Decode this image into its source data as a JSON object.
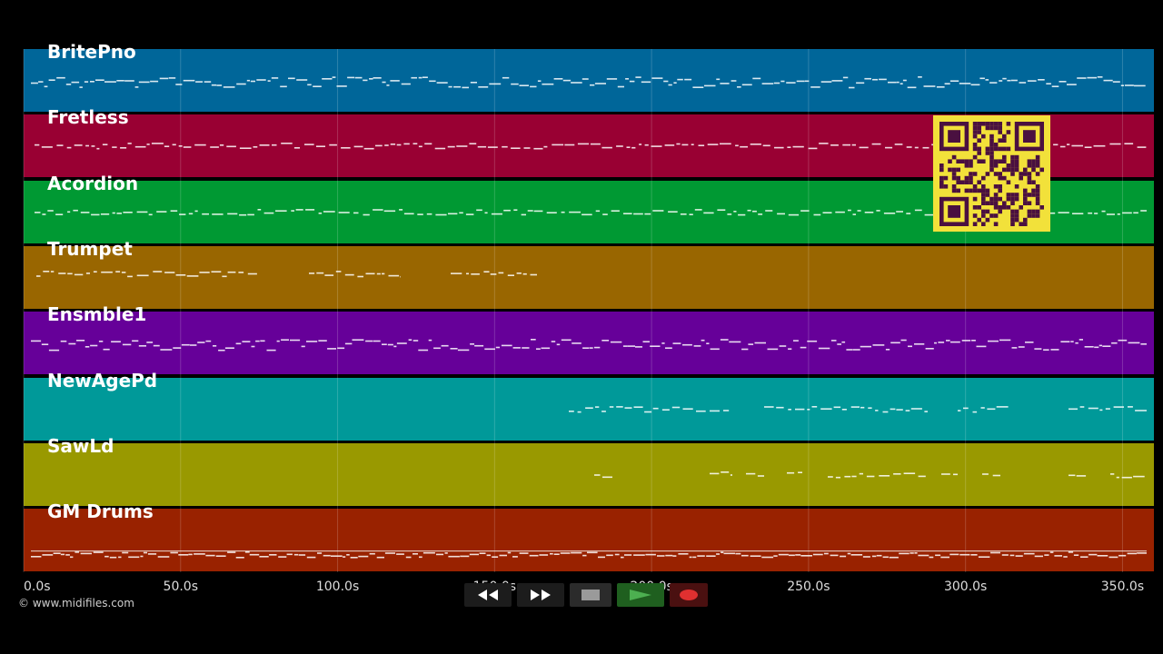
{
  "tracks": [
    {
      "name": "BritePno",
      "color": "#006699",
      "density": "dense"
    },
    {
      "name": "Fretless",
      "color": "#990033",
      "density": "medium"
    },
    {
      "name": "Acordion",
      "color": "#009933",
      "density": "medium"
    },
    {
      "name": "Trumpet",
      "color": "#996600",
      "density": "sparse-early"
    },
    {
      "name": "Ensmble1",
      "color": "#660099",
      "density": "dense"
    },
    {
      "name": "NewAgePd",
      "color": "#009999",
      "density": "late"
    },
    {
      "name": "SawLd",
      "color": "#999900",
      "density": "late-sparse"
    },
    {
      "name": "GM Drums",
      "color": "#992200",
      "density": "drums"
    }
  ],
  "timeline": {
    "labels": [
      "0.0s",
      "50.0s",
      "100.0s",
      "150.0s",
      "200.0s",
      "250.0s",
      "300.0s",
      "350.0s"
    ],
    "max_seconds": 360
  },
  "copyright": "© www.midifiles.com",
  "transport": {
    "rewind_icon": "rewind-icon",
    "fast_forward_icon": "fast-forward-icon",
    "stop_icon": "stop-icon",
    "play_icon": "play-icon",
    "record_icon": "record-icon"
  },
  "colors": {
    "background": "#000000",
    "play_accent": "#4caf50",
    "record_accent": "#e03030",
    "qr_background": "#f2e13a",
    "qr_foreground": "#4a1040"
  }
}
